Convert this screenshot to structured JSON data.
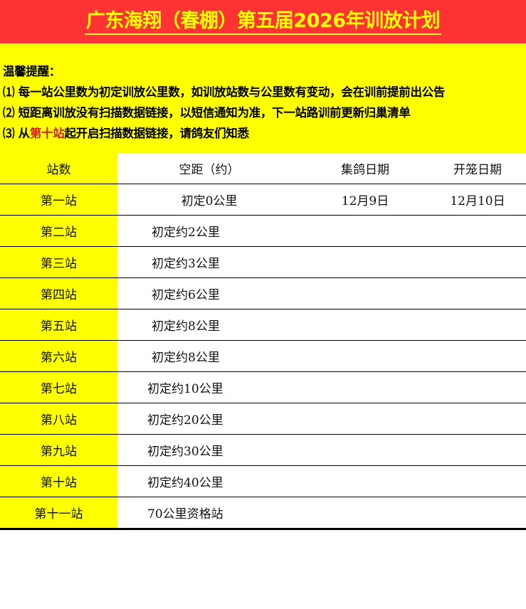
{
  "header": {
    "title": "广东海翔（春棚）第五届2026年训放计划"
  },
  "notice": {
    "heading": "温馨提醒：",
    "line1": "⑴ 每一站公里数为初定训放公里数，如训放站数与公里数有变动，会在训前提前出公告",
    "line2": "⑵ 短距离训放没有扫描数据链接，以短信通知为准，下一站路训前更新归巢清单",
    "line3_prefix": "⑶ 从",
    "line3_highlight": "第十站",
    "line3_suffix": "起开启扫描数据链接，请鸽友们知悉"
  },
  "table": {
    "headers": [
      "站数",
      "空距（约）",
      "集鸽日期",
      "开笼日期"
    ],
    "rows": [
      [
        "第一站",
        "初定0公里",
        "12月9日",
        "12月10日"
      ],
      [
        "第二站",
        "初定约2公里",
        "",
        ""
      ],
      [
        "第三站",
        "初定约3公里",
        "",
        ""
      ],
      [
        "第四站",
        "初定约6公里",
        "",
        ""
      ],
      [
        "第五站",
        "初定约8公里",
        "",
        ""
      ],
      [
        "第六站",
        "初定约8公里",
        "",
        ""
      ],
      [
        "第七站",
        "初定约10公里",
        "",
        ""
      ],
      [
        "第八站",
        "初定约20公里",
        "",
        ""
      ],
      [
        "第九站",
        "初定约30公里",
        "",
        ""
      ],
      [
        "第十站",
        "初定约40公里",
        "",
        ""
      ],
      [
        "第十一站",
        "70公里资格站",
        "",
        ""
      ]
    ]
  },
  "colors": {
    "title_bg": "#ff3333",
    "title_text": "#ffff00",
    "notice_bg": "#ffff00",
    "highlight": "#d42020"
  }
}
